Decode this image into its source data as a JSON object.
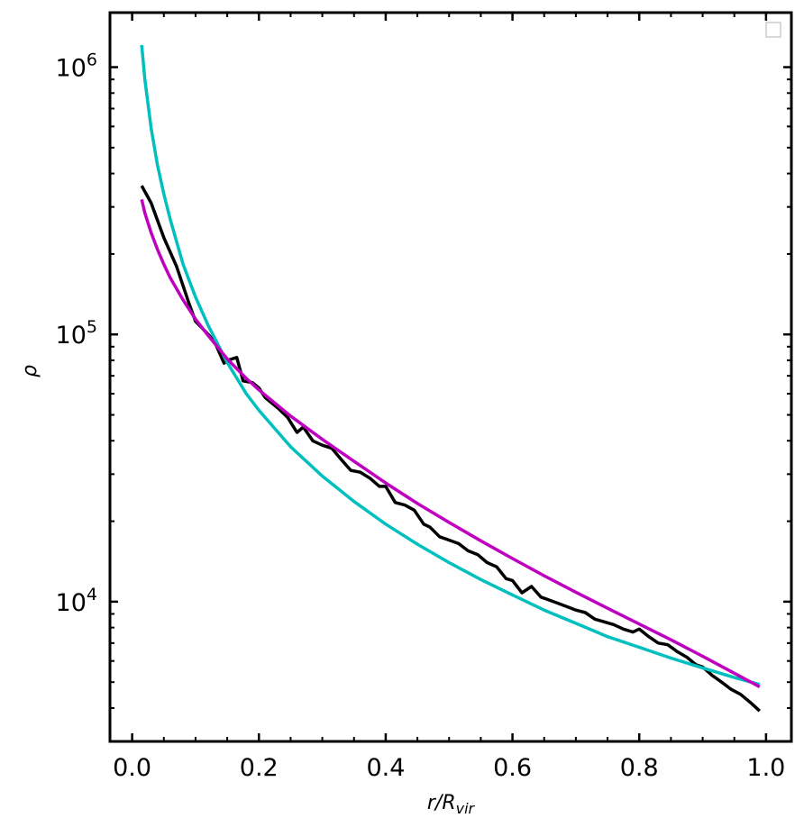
{
  "chart_data": {
    "type": "line",
    "title": "",
    "xlabel": {
      "main": "r/R",
      "sub": "vir"
    },
    "ylabel": "ρ",
    "xlim": [
      -0.035,
      1.04
    ],
    "ylim": [
      3000,
      1600000
    ],
    "yscale": "log",
    "x_ticks": [
      {
        "value": 0.0,
        "label": "0.0"
      },
      {
        "value": 0.2,
        "label": "0.2"
      },
      {
        "value": 0.4,
        "label": "0.4"
      },
      {
        "value": 0.6,
        "label": "0.6"
      },
      {
        "value": 0.8,
        "label": "0.8"
      },
      {
        "value": 1.0,
        "label": "1.0"
      }
    ],
    "y_ticks": [
      {
        "value": 10000,
        "base": "10",
        "exp": "4"
      },
      {
        "value": 100000,
        "base": "10",
        "exp": "5"
      },
      {
        "value": 1000000,
        "base": "10",
        "exp": "6"
      }
    ],
    "grid": false,
    "legend": {
      "placement": "top-right",
      "entries": []
    },
    "series": [
      {
        "color": "#000000",
        "x": [
          0.015,
          0.03,
          0.05,
          0.07,
          0.09,
          0.1,
          0.12,
          0.13,
          0.145,
          0.15,
          0.165,
          0.175,
          0.19,
          0.2,
          0.21,
          0.23,
          0.245,
          0.26,
          0.27,
          0.285,
          0.3,
          0.315,
          0.33,
          0.345,
          0.36,
          0.375,
          0.39,
          0.4,
          0.415,
          0.43,
          0.445,
          0.46,
          0.47,
          0.485,
          0.5,
          0.515,
          0.53,
          0.545,
          0.56,
          0.575,
          0.59,
          0.6,
          0.615,
          0.63,
          0.645,
          0.66,
          0.675,
          0.69,
          0.7,
          0.715,
          0.73,
          0.745,
          0.76,
          0.775,
          0.79,
          0.8,
          0.815,
          0.83,
          0.845,
          0.86,
          0.875,
          0.89,
          0.9,
          0.915,
          0.93,
          0.945,
          0.96,
          0.975,
          0.99
        ],
        "y": [
          360000,
          310000,
          230000,
          180000,
          130000,
          112000,
          100000,
          94000,
          78000,
          80000,
          82000,
          67000,
          66000,
          63000,
          58000,
          53000,
          49000,
          43000,
          45000,
          40000,
          38500,
          37500,
          34000,
          31000,
          30500,
          29000,
          27000,
          27000,
          23500,
          23000,
          22000,
          19500,
          19000,
          17500,
          17000,
          16500,
          15500,
          15000,
          14000,
          13500,
          12200,
          12000,
          10800,
          11400,
          10400,
          10100,
          9800,
          9500,
          9300,
          9100,
          8600,
          8400,
          8200,
          7900,
          7700,
          7900,
          7400,
          7000,
          6900,
          6500,
          6200,
          5800,
          5700,
          5300,
          5000,
          4700,
          4500,
          4200,
          3900
        ]
      },
      {
        "color": "#00bfbf",
        "x": [
          0.015,
          0.02,
          0.03,
          0.04,
          0.05,
          0.06,
          0.08,
          0.1,
          0.12,
          0.15,
          0.18,
          0.2,
          0.25,
          0.3,
          0.35,
          0.4,
          0.45,
          0.5,
          0.55,
          0.6,
          0.65,
          0.7,
          0.75,
          0.8,
          0.85,
          0.9,
          0.95,
          0.99
        ],
        "y": [
          1210000,
          900000,
          590000,
          430000,
          335000,
          270000,
          184000,
          138000,
          108000,
          78500,
          60000,
          52000,
          38000,
          29500,
          23700,
          19500,
          16400,
          14000,
          12100,
          10600,
          9300,
          8300,
          7400,
          6750,
          6150,
          5650,
          5200,
          4900
        ]
      },
      {
        "color": "#bf00bf",
        "x": [
          0.015,
          0.02,
          0.03,
          0.04,
          0.05,
          0.06,
          0.08,
          0.1,
          0.12,
          0.15,
          0.18,
          0.2,
          0.25,
          0.3,
          0.35,
          0.4,
          0.45,
          0.5,
          0.55,
          0.6,
          0.65,
          0.7,
          0.75,
          0.8,
          0.85,
          0.9,
          0.95,
          0.99
        ],
        "y": [
          320000,
          285000,
          240000,
          208000,
          183000,
          163000,
          135000,
          114000,
          99000,
          81000,
          68500,
          62000,
          49500,
          40500,
          33500,
          27800,
          23300,
          19800,
          16900,
          14500,
          12500,
          10850,
          9450,
          8250,
          7200,
          6250,
          5400,
          4800
        ]
      }
    ]
  }
}
